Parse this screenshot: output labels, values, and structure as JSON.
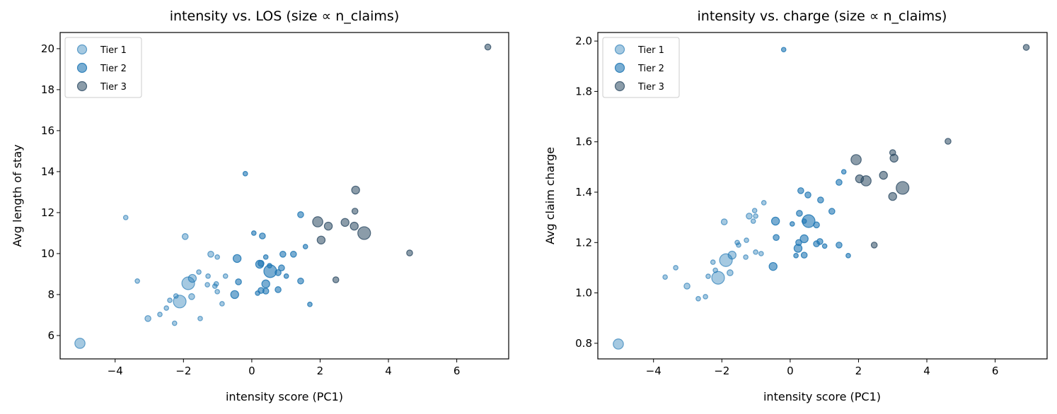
{
  "chart_data": [
    {
      "type": "scatter",
      "title": "intensity vs. LOS (size ∝ n_claims)",
      "xlabel": "intensity score (PC1)",
      "ylabel": "Avg length of stay",
      "xlim": [
        -5.61,
        7.52
      ],
      "ylim": [
        4.86,
        20.79
      ],
      "xticks": [
        -4,
        -2,
        0,
        2,
        4,
        6
      ],
      "xtick_labels": [
        "−4",
        "−2",
        "0",
        "2",
        "4",
        "6"
      ],
      "yticks": [
        6,
        8,
        10,
        12,
        14,
        16,
        18,
        20
      ],
      "ytick_labels": [
        "6",
        "8",
        "10",
        "12",
        "14",
        "16",
        "18",
        "20"
      ],
      "grid": false,
      "legend": {
        "placement": "top-left",
        "entries": [
          "Tier 1",
          "Tier 2",
          "Tier 3"
        ]
      },
      "series": [
        {
          "name": "Tier 1",
          "color": "#1f77b4",
          "opacity": 0.4,
          "points": [
            [
              -5.03,
              5.62,
              4
            ],
            [
              -3.69,
              11.76,
              1
            ],
            [
              -3.35,
              8.66,
              1
            ],
            [
              -3.04,
              6.83,
              2
            ],
            [
              -2.69,
              7.03,
              1
            ],
            [
              -2.5,
              7.34,
              1
            ],
            [
              -2.4,
              7.72,
              1
            ],
            [
              -2.26,
              6.6,
              1
            ],
            [
              -2.22,
              7.93,
              1
            ],
            [
              -2.11,
              7.66,
              5
            ],
            [
              -1.95,
              10.83,
              2
            ],
            [
              -1.86,
              8.55,
              5
            ],
            [
              -1.74,
              8.79,
              3
            ],
            [
              -1.76,
              7.9,
              2
            ],
            [
              -1.55,
              9.1,
              1
            ],
            [
              -1.51,
              6.83,
              1
            ],
            [
              -1.3,
              8.48,
              1
            ],
            [
              -1.28,
              8.9,
              1
            ],
            [
              -1.2,
              9.97,
              2
            ],
            [
              -1.08,
              8.41,
              1
            ],
            [
              -1.04,
              8.52,
              1
            ],
            [
              -1.01,
              8.14,
              1
            ],
            [
              -1.01,
              9.83,
              1
            ],
            [
              -0.87,
              7.55,
              1
            ],
            [
              -0.77,
              8.9,
              1
            ]
          ]
        },
        {
          "name": "Tier 2",
          "color": "#1f77b4",
          "opacity": 0.6,
          "points": [
            [
              -0.19,
              13.9,
              1
            ],
            [
              0.06,
              11.0,
              1
            ],
            [
              0.31,
              10.86,
              2
            ],
            [
              -0.43,
              9.76,
              3
            ],
            [
              0.41,
              9.83,
              1
            ],
            [
              0.23,
              9.48,
              3
            ],
            [
              0.27,
              9.52,
              2
            ],
            [
              0.52,
              9.41,
              1
            ],
            [
              0.54,
              9.14,
              5
            ],
            [
              0.77,
              9.07,
              2
            ],
            [
              0.87,
              9.3,
              2
            ],
            [
              0.91,
              9.97,
              2
            ],
            [
              1.22,
              9.97,
              2
            ],
            [
              1.01,
              8.9,
              1
            ],
            [
              1.43,
              11.9,
              2
            ],
            [
              1.57,
              10.34,
              1
            ],
            [
              -0.39,
              8.62,
              2
            ],
            [
              -0.5,
              8.0,
              3
            ],
            [
              0.41,
              8.52,
              3
            ],
            [
              0.27,
              8.2,
              2
            ],
            [
              0.17,
              8.07,
              1
            ],
            [
              0.41,
              8.17,
              2
            ],
            [
              0.77,
              8.24,
              2
            ],
            [
              1.43,
              8.66,
              2
            ],
            [
              1.7,
              7.52,
              1
            ]
          ]
        },
        {
          "name": "Tier 3",
          "color": "#2c4a63",
          "opacity": 0.55,
          "points": [
            [
              3.04,
              13.1,
              3
            ],
            [
              3.02,
              12.07,
              2
            ],
            [
              1.93,
              11.55,
              4
            ],
            [
              2.24,
              11.34,
              3
            ],
            [
              2.73,
              11.52,
              3
            ],
            [
              3.0,
              11.34,
              3
            ],
            [
              3.29,
              11.0,
              5
            ],
            [
              2.03,
              10.66,
              3
            ],
            [
              4.62,
              10.03,
              2
            ],
            [
              2.46,
              8.72,
              2
            ],
            [
              6.91,
              20.08,
              2
            ]
          ]
        }
      ]
    },
    {
      "type": "scatter",
      "title": "intensity vs. charge (size ∝ n_claims)",
      "xlabel": "intensity score (PC1)",
      "ylabel": "Avg claim charge",
      "xlim": [
        -5.63,
        7.52
      ],
      "ylim": [
        0.738,
        2.034
      ],
      "xticks": [
        -4,
        -2,
        0,
        2,
        4,
        6
      ],
      "xtick_labels": [
        "−4",
        "−2",
        "0",
        "2",
        "4",
        "6"
      ],
      "yticks": [
        0.8,
        1.0,
        1.2,
        1.4,
        1.6,
        1.8,
        2.0
      ],
      "ytick_labels": [
        "0.8",
        "1.0",
        "1.2",
        "1.4",
        "1.6",
        "1.8",
        "2.0"
      ],
      "grid": false,
      "legend": {
        "placement": "top-left",
        "entries": [
          "Tier 1",
          "Tier 2",
          "Tier 3"
        ]
      },
      "series": [
        {
          "name": "Tier 1",
          "color": "#1f77b4",
          "opacity": 0.4,
          "points": [
            [
              -5.03,
              0.797,
              4
            ],
            [
              -3.66,
              1.063,
              1
            ],
            [
              -3.35,
              1.1,
              1
            ],
            [
              -3.02,
              1.027,
              2
            ],
            [
              -2.69,
              0.977,
              1
            ],
            [
              -2.48,
              0.985,
              1
            ],
            [
              -2.4,
              1.066,
              1
            ],
            [
              -2.19,
              1.09,
              1
            ],
            [
              -2.11,
              1.06,
              5
            ],
            [
              -2.26,
              1.122,
              1
            ],
            [
              -1.88,
              1.13,
              5
            ],
            [
              -1.7,
              1.15,
              3
            ],
            [
              -1.76,
              1.08,
              2
            ],
            [
              -1.93,
              1.282,
              2
            ],
            [
              -1.55,
              1.2,
              1
            ],
            [
              -1.51,
              1.19,
              1
            ],
            [
              -1.28,
              1.209,
              1
            ],
            [
              -1.3,
              1.142,
              1
            ],
            [
              -1.2,
              1.305,
              2
            ],
            [
              -1.04,
              1.327,
              1
            ],
            [
              -1.01,
              1.305,
              1
            ],
            [
              -1.08,
              1.285,
              1
            ],
            [
              -0.77,
              1.358,
              1
            ],
            [
              -1.01,
              1.162,
              1
            ],
            [
              -0.85,
              1.156,
              1
            ]
          ]
        },
        {
          "name": "Tier 2",
          "color": "#1f77b4",
          "opacity": 0.6,
          "points": [
            [
              -0.19,
              1.966,
              1
            ],
            [
              1.57,
              1.481,
              1
            ],
            [
              1.43,
              1.439,
              2
            ],
            [
              0.31,
              1.406,
              2
            ],
            [
              0.52,
              1.389,
              2
            ],
            [
              0.89,
              1.369,
              2
            ],
            [
              1.22,
              1.324,
              2
            ],
            [
              0.27,
              1.316,
              2
            ],
            [
              -0.43,
              1.285,
              3
            ],
            [
              0.06,
              1.274,
              1
            ],
            [
              0.54,
              1.285,
              5
            ],
            [
              0.41,
              1.285,
              1
            ],
            [
              0.77,
              1.27,
              2
            ],
            [
              -0.41,
              1.22,
              2
            ],
            [
              0.41,
              1.215,
              3
            ],
            [
              0.25,
              1.2,
              2
            ],
            [
              0.23,
              1.177,
              3
            ],
            [
              0.87,
              1.204,
              2
            ],
            [
              0.77,
              1.195,
              2
            ],
            [
              1.01,
              1.186,
              1
            ],
            [
              1.43,
              1.19,
              2
            ],
            [
              0.17,
              1.148,
              1
            ],
            [
              0.41,
              1.15,
              2
            ],
            [
              1.7,
              1.148,
              1
            ],
            [
              -0.5,
              1.105,
              3
            ]
          ]
        },
        {
          "name": "Tier 3",
          "color": "#2c4a63",
          "opacity": 0.55,
          "points": [
            [
              4.62,
              1.602,
              2
            ],
            [
              3.0,
              1.557,
              2
            ],
            [
              3.04,
              1.535,
              3
            ],
            [
              1.93,
              1.529,
              4
            ],
            [
              2.03,
              1.453,
              3
            ],
            [
              2.22,
              1.445,
              4
            ],
            [
              2.73,
              1.467,
              3
            ],
            [
              3.29,
              1.417,
              5
            ],
            [
              3.0,
              1.383,
              3
            ],
            [
              2.46,
              1.19,
              2
            ],
            [
              6.91,
              1.975,
              2
            ]
          ]
        }
      ]
    }
  ]
}
